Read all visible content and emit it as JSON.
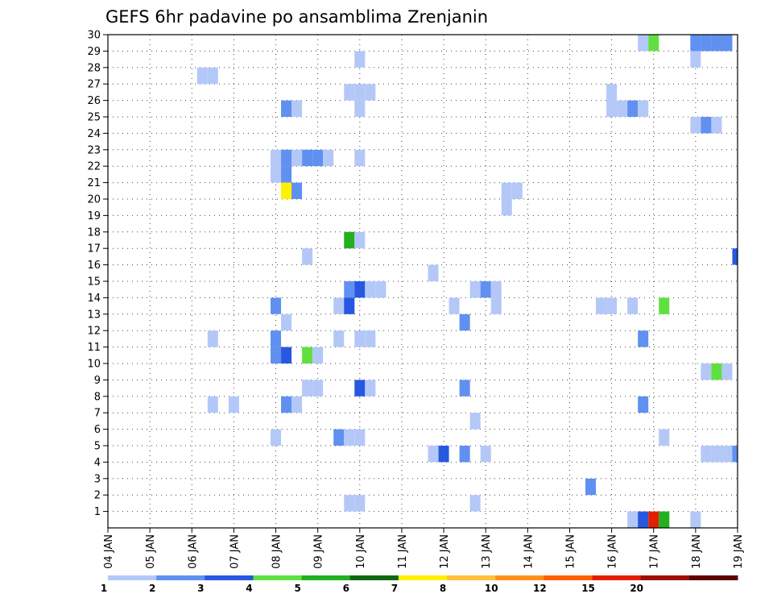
{
  "chart_data": {
    "type": "heatmap",
    "title": "GEFS 6hr padavine po ansamblima Zrenjanin",
    "xlabel": "",
    "ylabel": "",
    "x_range_days": [
      4,
      19
    ],
    "x_tick_labels": [
      "04 JAN",
      "05 JAN",
      "06 JAN",
      "07 JAN",
      "08 JAN",
      "09 JAN",
      "10 JAN",
      "11 JAN",
      "12 JAN",
      "13 JAN",
      "14 JAN",
      "15 JAN",
      "16 JAN",
      "17 JAN",
      "18 JAN",
      "19 JAN"
    ],
    "y_range": [
      0,
      30
    ],
    "y_tick_labels": [
      "1",
      "2",
      "3",
      "4",
      "5",
      "6",
      "7",
      "8",
      "9",
      "10",
      "11",
      "12",
      "13",
      "14",
      "15",
      "16",
      "17",
      "18",
      "19",
      "20",
      "21",
      "22",
      "23",
      "24",
      "25",
      "26",
      "27",
      "28",
      "29",
      "30"
    ],
    "grid": true,
    "legend_placement": "bottom",
    "legend": {
      "colors": [
        "#b4c8f8",
        "#6090f0",
        "#2858e0",
        "#60e040",
        "#20b020",
        "#106810",
        "#fff000",
        "#ffc040",
        "#ff9020",
        "#ff6000",
        "#e02000",
        "#a01000",
        "#600000"
      ],
      "labels": [
        "1",
        "2",
        "3",
        "4",
        "5",
        "6",
        "7",
        "8",
        "10",
        "12",
        "15",
        "20"
      ]
    },
    "cell_value_encoding": "0=1-2, 1=2-3, 2=3-4, 3=4-5, 4=5-6, 5=6-7, 6=7-8, 7=8-10, 8=10-12, 9=12-15, 10=15-20, 11=20+",
    "cells": [
      [
        16.75,
        30,
        0
      ],
      [
        17.0,
        30,
        3
      ],
      [
        18.0,
        30,
        1
      ],
      [
        18.25,
        30,
        1
      ],
      [
        18.5,
        30,
        1
      ],
      [
        18.75,
        30,
        1
      ],
      [
        10.0,
        29,
        0
      ],
      [
        18.0,
        29,
        0
      ],
      [
        6.25,
        28,
        0
      ],
      [
        6.5,
        28,
        0
      ],
      [
        9.75,
        27,
        0
      ],
      [
        10.0,
        27,
        0
      ],
      [
        10.25,
        27,
        0
      ],
      [
        16.0,
        27,
        0
      ],
      [
        8.25,
        26,
        1
      ],
      [
        8.5,
        26,
        0
      ],
      [
        10.0,
        26,
        0
      ],
      [
        16.0,
        26,
        0
      ],
      [
        16.25,
        26,
        0
      ],
      [
        16.5,
        26,
        1
      ],
      [
        16.75,
        26,
        0
      ],
      [
        18.0,
        25,
        0
      ],
      [
        18.25,
        25,
        1
      ],
      [
        18.5,
        25,
        0
      ],
      [
        8.0,
        23,
        0
      ],
      [
        8.25,
        23,
        1
      ],
      [
        8.5,
        23,
        0
      ],
      [
        8.75,
        23,
        1
      ],
      [
        9.0,
        23,
        1
      ],
      [
        9.25,
        23,
        0
      ],
      [
        10.0,
        23,
        0
      ],
      [
        8.0,
        22,
        0
      ],
      [
        8.25,
        22,
        1
      ],
      [
        8.25,
        21,
        6
      ],
      [
        8.5,
        21,
        1
      ],
      [
        13.5,
        21,
        0
      ],
      [
        13.75,
        21,
        0
      ],
      [
        13.5,
        20,
        0
      ],
      [
        9.75,
        18,
        4
      ],
      [
        10.0,
        18,
        0
      ],
      [
        8.75,
        17,
        0
      ],
      [
        19.0,
        17,
        2
      ],
      [
        11.75,
        16,
        0
      ],
      [
        9.75,
        15,
        1
      ],
      [
        10.0,
        15,
        2
      ],
      [
        10.25,
        15,
        0
      ],
      [
        10.5,
        15,
        0
      ],
      [
        12.75,
        15,
        0
      ],
      [
        13.0,
        15,
        1
      ],
      [
        13.25,
        15,
        0
      ],
      [
        8.0,
        14,
        1
      ],
      [
        9.5,
        14,
        0
      ],
      [
        9.75,
        14,
        2
      ],
      [
        12.25,
        14,
        0
      ],
      [
        13.25,
        14,
        0
      ],
      [
        15.75,
        14,
        0
      ],
      [
        16.0,
        14,
        0
      ],
      [
        16.5,
        14,
        0
      ],
      [
        17.25,
        14,
        3
      ],
      [
        8.25,
        13,
        0
      ],
      [
        12.5,
        13,
        1
      ],
      [
        6.5,
        12,
        0
      ],
      [
        8.0,
        12,
        1
      ],
      [
        9.5,
        12,
        0
      ],
      [
        10.0,
        12,
        0
      ],
      [
        10.25,
        12,
        0
      ],
      [
        16.75,
        12,
        1
      ],
      [
        8.0,
        11,
        1
      ],
      [
        8.25,
        11,
        2
      ],
      [
        8.75,
        11,
        3
      ],
      [
        9.0,
        11,
        0
      ],
      [
        18.25,
        10,
        0
      ],
      [
        18.5,
        10,
        3
      ],
      [
        18.75,
        10,
        0
      ],
      [
        8.75,
        9,
        0
      ],
      [
        9.0,
        9,
        0
      ],
      [
        10.0,
        9,
        2
      ],
      [
        10.25,
        9,
        0
      ],
      [
        12.5,
        9,
        1
      ],
      [
        6.5,
        8,
        0
      ],
      [
        7.0,
        8,
        0
      ],
      [
        8.25,
        8,
        1
      ],
      [
        8.5,
        8,
        0
      ],
      [
        16.75,
        8,
        1
      ],
      [
        12.75,
        7,
        0
      ],
      [
        8.0,
        6,
        0
      ],
      [
        9.5,
        6,
        1
      ],
      [
        9.75,
        6,
        0
      ],
      [
        10.0,
        6,
        0
      ],
      [
        17.25,
        6,
        0
      ],
      [
        11.75,
        5,
        0
      ],
      [
        12.0,
        5,
        2
      ],
      [
        12.5,
        5,
        1
      ],
      [
        13.0,
        5,
        0
      ],
      [
        18.25,
        5,
        0
      ],
      [
        18.5,
        5,
        0
      ],
      [
        18.75,
        5,
        0
      ],
      [
        19.0,
        5,
        1
      ],
      [
        15.5,
        3,
        1
      ],
      [
        9.75,
        2,
        0
      ],
      [
        10.0,
        2,
        0
      ],
      [
        12.75,
        2,
        0
      ],
      [
        16.5,
        1,
        0
      ],
      [
        16.75,
        1,
        2
      ],
      [
        17.0,
        1,
        10
      ],
      [
        17.25,
        1,
        4
      ],
      [
        18.0,
        1,
        0
      ]
    ]
  }
}
